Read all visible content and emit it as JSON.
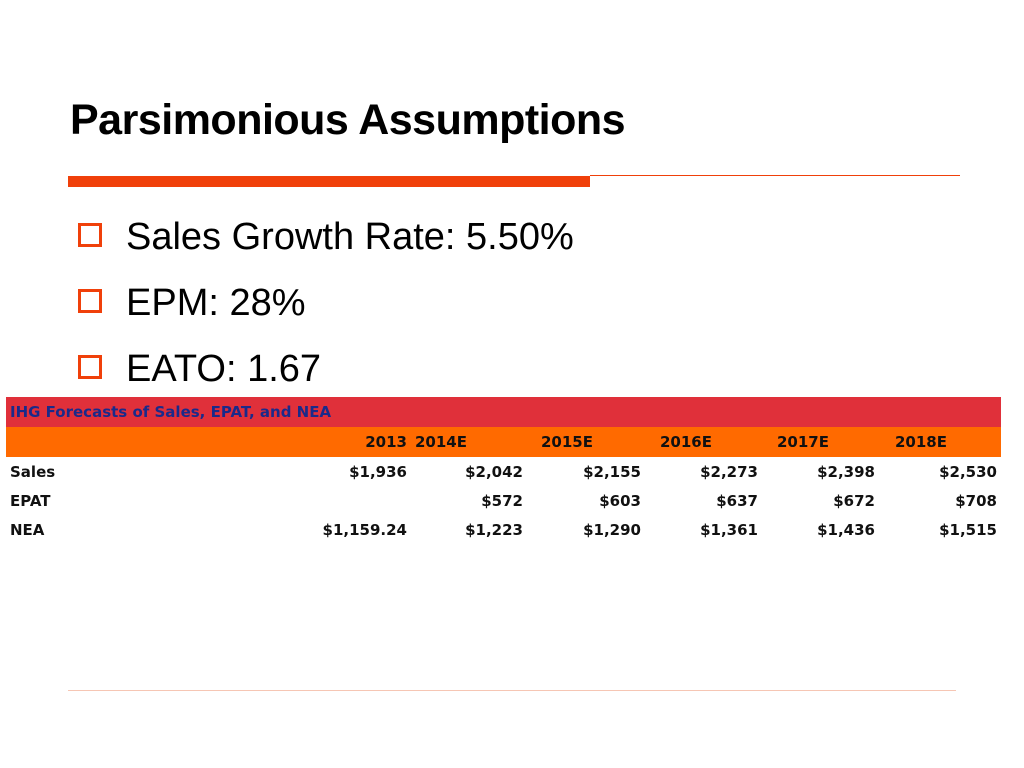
{
  "title": "Parsimonious Assumptions",
  "bullets": [
    "Sales Growth Rate: 5.50%",
    "EPM: 28%",
    "EATO: 1.67"
  ],
  "colors": {
    "accent": "#f0400a",
    "table_title_bg": "#e0303a",
    "table_header_bg": "#ff6a00",
    "table_title_text": "#1a2a8a"
  },
  "table": {
    "title": "IHG Forecasts of Sales, EPAT, and NEA",
    "headers": [
      "",
      "2013",
      "2014E",
      "2015E",
      "2016E",
      "2017E",
      "2018E"
    ],
    "rows": [
      {
        "label": "Sales",
        "cells": [
          "$1,936",
          "$2,042",
          "$2,155",
          "$2,273",
          "$2,398",
          "$2,530"
        ]
      },
      {
        "label": "EPAT",
        "cells": [
          "",
          "$572",
          "$603",
          "$637",
          "$672",
          "$708"
        ]
      },
      {
        "label": "NEA",
        "cells": [
          "$1,159.24",
          "$1,223",
          "$1,290",
          "$1,361",
          "$1,436",
          "$1,515"
        ]
      }
    ]
  }
}
